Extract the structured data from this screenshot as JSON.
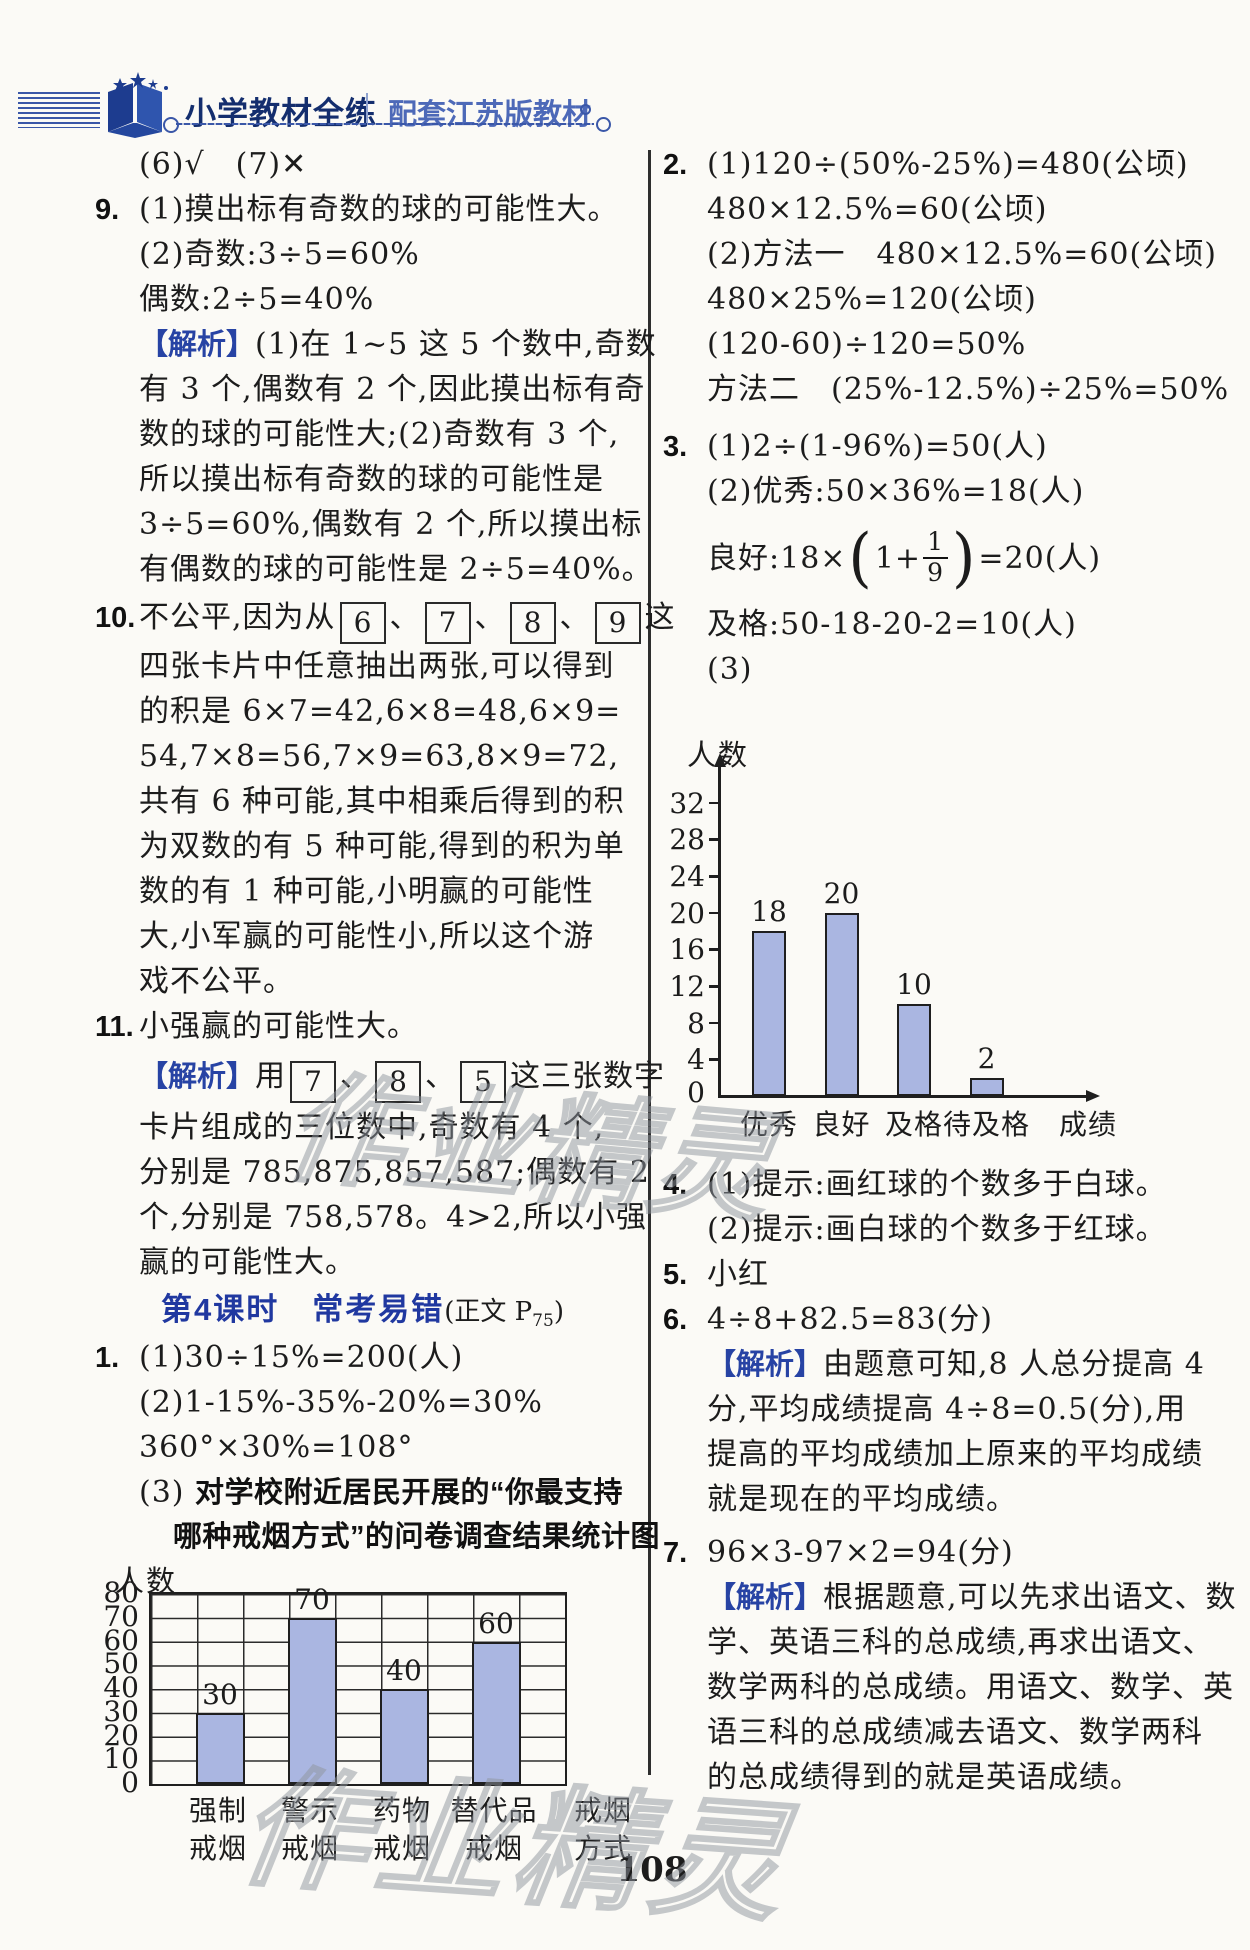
{
  "header": {
    "brand": "小学教材全练",
    "edition": "配套江苏版教材"
  },
  "page_number": "108",
  "watermark": "作业精灵",
  "left": {
    "l1": "(6)√　(7)✕",
    "q9": {
      "num": "9.",
      "l1": "(1)摸出标有奇数的球的可能性大。",
      "l2": "(2)奇数:3÷5=60%",
      "l3": "偶数:2÷5=40%"
    },
    "q9a": {
      "label": "【解析】",
      "l1": "(1)在 1~5 这 5 个数中,奇数",
      "l2": "有 3 个,偶数有 2 个,因此摸出标有奇",
      "l3": "数的球的可能性大;(2)奇数有 3 个,",
      "l4": "所以摸出标有奇数的球的可能性是",
      "l5": "3÷5=60%,偶数有 2 个,所以摸出标",
      "l6": "有偶数的球的可能性是 2÷5=40%。"
    },
    "q10": {
      "num": "10.",
      "pre": "不公平,因为从",
      "cards": [
        "6",
        "7",
        "8",
        "9"
      ],
      "sep": "、",
      "post": "这",
      "l2": "四张卡片中任意抽出两张,可以得到",
      "l3": "的积是 6×7=42,6×8=48,6×9=",
      "l4": "54,7×8=56,7×9=63,8×9=72,",
      "l5": "共有 6 种可能,其中相乘后得到的积",
      "l6": "为双数的有 5 种可能,得到的积为单",
      "l7": "数的有 1 种可能,小明赢的可能性",
      "l8": "大,小军赢的可能性小,所以这个游",
      "l9": "戏不公平。"
    },
    "q11": {
      "num": "11.",
      "l1": "小强赢的可能性大。"
    },
    "q11a": {
      "label": "【解析】",
      "pre": "用",
      "cards": [
        "7",
        "8",
        "5"
      ],
      "sep": "、",
      "post": "这三张数字",
      "l2": "卡片组成的三位数中,奇数有 4 个,",
      "l3": "分别是 785,875,857,587;偶数有 2",
      "l4": "个,分别是 758,578。4>2,所以小强",
      "l5": "赢的可能性大。"
    },
    "heading": {
      "title": "第4课时　常考易错",
      "suffix_pre": "(正文 P",
      "suffix_sub": "75",
      "suffix_post": ")"
    },
    "q1": {
      "num": "1.",
      "l1": "(1)30÷15%=200(人)",
      "l2": "(2)1-15%-35%-20%=30%",
      "l3": "360°×30%=108°",
      "l4_pre": "(3) ",
      "l4": "对学校附近居民开展的“你最支持",
      "l5": "哪种戒烟方式”的问卷调查结果统计图"
    }
  },
  "right": {
    "q2": {
      "num": "2.",
      "l1": "(1)120÷(50%-25%)=480(公顷)",
      "l2": "480×12.5%=60(公顷)",
      "l3": "(2)方法一　480×12.5%=60(公顷)",
      "l4": "480×25%=120(公顷)",
      "l5": "(120-60)÷120=50%",
      "l6": "方法二　(25%-12.5%)÷25%=50%"
    },
    "q3": {
      "num": "3.",
      "l1": "(1)2÷(1-96%)=50(人)",
      "l2": "(2)优秀:50×36%=18(人)",
      "frac": {
        "pre": "良好:18×",
        "open": "(",
        "inner": "1+",
        "num": "1",
        "den": "9",
        "close": ")",
        "post": "=20(人)"
      },
      "l4": "及格:50-18-20-2=10(人)",
      "l5": "(3)"
    },
    "q4": {
      "num": "4.",
      "l1": "(1)提示:画红球的个数多于白球。",
      "l2": "(2)提示:画白球的个数多于红球。"
    },
    "q5": {
      "num": "5.",
      "l1": "小红"
    },
    "q6": {
      "num": "6.",
      "l1": "4÷8+82.5=83(分)"
    },
    "q6a": {
      "label": "【解析】",
      "l1": "由题意可知,8 人总分提高 4",
      "l2": "分,平均成绩提高 4÷8=0.5(分),用",
      "l3": "提高的平均成绩加上原来的平均成绩",
      "l4": "就是现在的平均成绩。"
    },
    "q7": {
      "num": "7.",
      "l1": "96×3-97×2=94(分)"
    },
    "q7a": {
      "label": "【解析】",
      "l1": "根据题意,可以先求出语文、数",
      "l2": "学、英语三科的总成绩,再求出语文、",
      "l3": "数学两科的总成绩。用语文、数学、英",
      "l4": "语三科的总成绩减去语文、数学两科",
      "l5": "的总成绩得到的就是英语成绩。"
    }
  },
  "chart_data": [
    {
      "type": "bar",
      "title": "对学校附近居民开展的“你最支持哪种戒烟方式”的问卷调查结果统计图",
      "categories": [
        "强制戒烟",
        "警示戒烟",
        "药物戒烟",
        "替代品戒烟"
      ],
      "values": [
        30,
        70,
        40,
        60
      ],
      "ylabel": "人数",
      "xlabel": "戒烟方式",
      "ylim": [
        0,
        80
      ],
      "ytick_step": 10,
      "grid": true,
      "bar_color": "#aab6e1",
      "legend": "none"
    },
    {
      "type": "bar",
      "title": "",
      "categories": [
        "优秀",
        "良好",
        "及格",
        "待及格"
      ],
      "values": [
        18,
        20,
        10,
        2
      ],
      "ylabel": "人数",
      "xlabel": "成绩",
      "ylim": [
        0,
        32
      ],
      "ytick_step": 4,
      "grid": false,
      "bar_color": "#aab6e1",
      "legend": "none"
    }
  ]
}
